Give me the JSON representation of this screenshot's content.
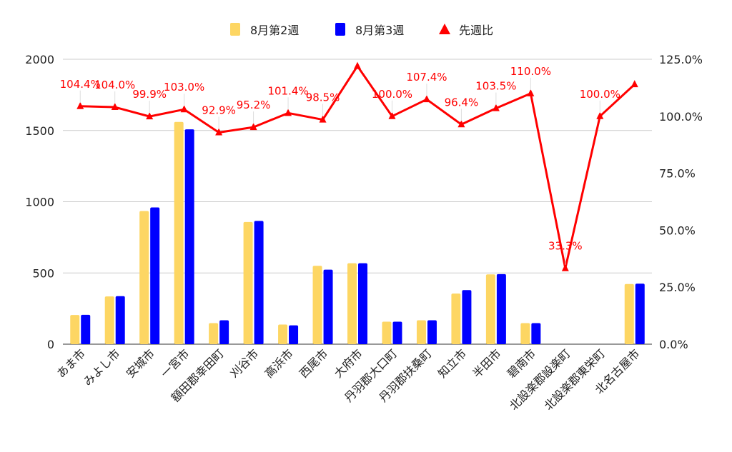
{
  "chart_data": {
    "type": "bar",
    "categories": [
      "あま市",
      "みよし市",
      "安城市",
      "一宮市",
      "額田郡幸田町",
      "刈谷市",
      "高浜市",
      "西尾市",
      "大府市",
      "丹羽郡大口町",
      "丹羽郡扶桑町",
      "知立市",
      "半田市",
      "碧南市",
      "北設楽郡設楽町",
      "北設楽郡東栄町",
      "北名古屋市"
    ],
    "series": [
      {
        "name": "8月第2週",
        "type": "bar",
        "axis": "left",
        "color": "#FDD663",
        "values": [
          205,
          335,
          935,
          1560,
          148,
          858,
          138,
          550,
          568,
          158,
          168,
          355,
          490,
          148,
          0,
          0,
          422
        ]
      },
      {
        "name": "8月第3週",
        "type": "bar",
        "axis": "left",
        "color": "#0000FF",
        "values": [
          206,
          337,
          960,
          1508,
          168,
          865,
          132,
          523,
          568,
          158,
          168,
          380,
          492,
          148,
          0,
          0,
          425
        ]
      },
      {
        "name": "先週比",
        "type": "line",
        "axis": "right",
        "color": "#FF0000",
        "values": [
          104.4,
          104.0,
          99.9,
          103.0,
          92.9,
          95.2,
          101.4,
          98.5,
          122.0,
          100.0,
          107.4,
          96.4,
          103.5,
          110.0,
          33.3,
          100.0,
          114.0
        ],
        "labels": [
          "104.4%",
          "104.0%",
          "99.9%",
          "103.0%",
          "92.9%",
          "95.2%",
          "101.4%",
          "98.5%",
          "",
          "100.0%",
          "107.4%",
          "96.4%",
          "103.5%",
          "110.0%",
          "33.3%",
          "100.0%",
          ""
        ]
      }
    ],
    "y_left": {
      "min": 0,
      "max": 2000,
      "ticks": [
        "0",
        "500",
        "1000",
        "1500",
        "2000"
      ],
      "tick_values": [
        0,
        500,
        1000,
        1500,
        2000
      ]
    },
    "y_right": {
      "min": 0,
      "max": 125,
      "ticks": [
        "0.0%",
        "25.0%",
        "50.0%",
        "75.0%",
        "100.0%",
        "125.0%"
      ],
      "tick_values": [
        0,
        25,
        50,
        75,
        100,
        125
      ]
    },
    "grid": true,
    "legend_position": "top-center",
    "xlabel": "",
    "ylabel": ""
  }
}
